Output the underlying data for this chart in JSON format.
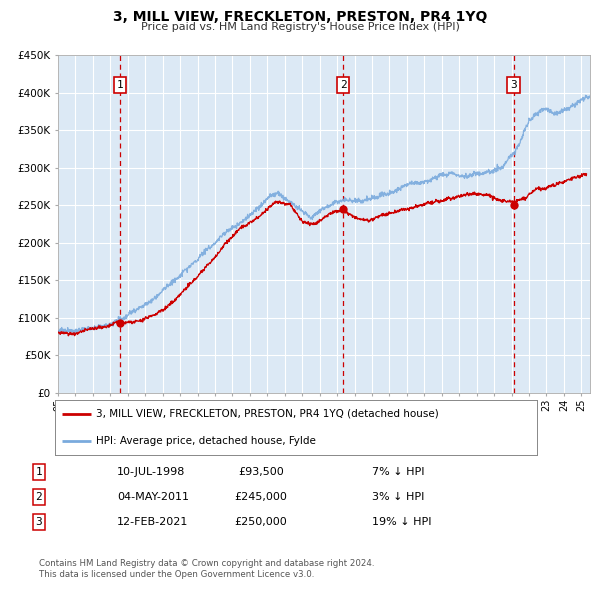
{
  "title": "3, MILL VIEW, FRECKLETON, PRESTON, PR4 1YQ",
  "subtitle": "Price paid vs. HM Land Registry's House Price Index (HPI)",
  "bg_color": "#dce9f5",
  "grid_color": "#ffffff",
  "sale_color": "#cc0000",
  "hpi_color": "#7aaadd",
  "sales": [
    {
      "date_num": 1998.54,
      "price": 93500,
      "label": "1"
    },
    {
      "date_num": 2011.34,
      "price": 245000,
      "label": "2"
    },
    {
      "date_num": 2021.12,
      "price": 250000,
      "label": "3"
    }
  ],
  "vlines": [
    1998.54,
    2011.34,
    2021.12
  ],
  "legend_sale_label": "3, MILL VIEW, FRECKLETON, PRESTON, PR4 1YQ (detached house)",
  "legend_hpi_label": "HPI: Average price, detached house, Fylde",
  "table_rows": [
    {
      "num": "1",
      "date": "10-JUL-1998",
      "price": "£93,500",
      "hpi": "7% ↓ HPI"
    },
    {
      "num": "2",
      "date": "04-MAY-2011",
      "price": "£245,000",
      "hpi": "3% ↓ HPI"
    },
    {
      "num": "3",
      "date": "12-FEB-2021",
      "price": "£250,000",
      "hpi": "19% ↓ HPI"
    }
  ],
  "footer": "Contains HM Land Registry data © Crown copyright and database right 2024.\nThis data is licensed under the Open Government Licence v3.0.",
  "ylim": [
    0,
    450000
  ],
  "xlim_start": 1995.0,
  "xlim_end": 2025.5,
  "hpi_anchors_x": [
    1995.0,
    1996.0,
    1997.0,
    1998.0,
    1999.0,
    2000.0,
    2001.5,
    2003.0,
    2004.5,
    2006.0,
    2007.5,
    2008.0,
    2008.8,
    2009.5,
    2010.5,
    2011.5,
    2012.5,
    2013.5,
    2014.5,
    2015.5,
    2016.5,
    2017.5,
    2018.5,
    2019.5,
    2020.5,
    2021.3,
    2022.0,
    2022.8,
    2023.5,
    2024.3,
    2025.3
  ],
  "hpi_anchors_y": [
    82000,
    86000,
    90000,
    95000,
    105000,
    118000,
    145000,
    175000,
    210000,
    240000,
    268000,
    262000,
    248000,
    238000,
    252000,
    258000,
    248000,
    255000,
    262000,
    268000,
    270000,
    275000,
    272000,
    276000,
    282000,
    310000,
    345000,
    358000,
    348000,
    352000,
    370000
  ],
  "sale_anchors_x": [
    1995.0,
    1996.0,
    1997.0,
    1998.0,
    1998.54,
    1999.5,
    2001.0,
    2002.5,
    2003.5,
    2004.5,
    2005.5,
    2006.5,
    2007.5,
    2008.3,
    2009.0,
    2009.8,
    2010.5,
    2011.34,
    2012.0,
    2012.8,
    2013.5,
    2014.5,
    2015.5,
    2016.5,
    2017.5,
    2018.5,
    2019.5,
    2020.0,
    2020.8,
    2021.12,
    2021.8,
    2022.5,
    2023.0,
    2023.8,
    2024.5,
    2025.3
  ],
  "sale_anchors_y": [
    80000,
    82000,
    87000,
    91000,
    93500,
    97000,
    115000,
    148000,
    172000,
    200000,
    225000,
    238000,
    258000,
    255000,
    232000,
    228000,
    238000,
    245000,
    238000,
    232000,
    238000,
    245000,
    250000,
    252000,
    255000,
    260000,
    262000,
    258000,
    252000,
    250000,
    255000,
    268000,
    270000,
    278000,
    285000,
    295000
  ]
}
